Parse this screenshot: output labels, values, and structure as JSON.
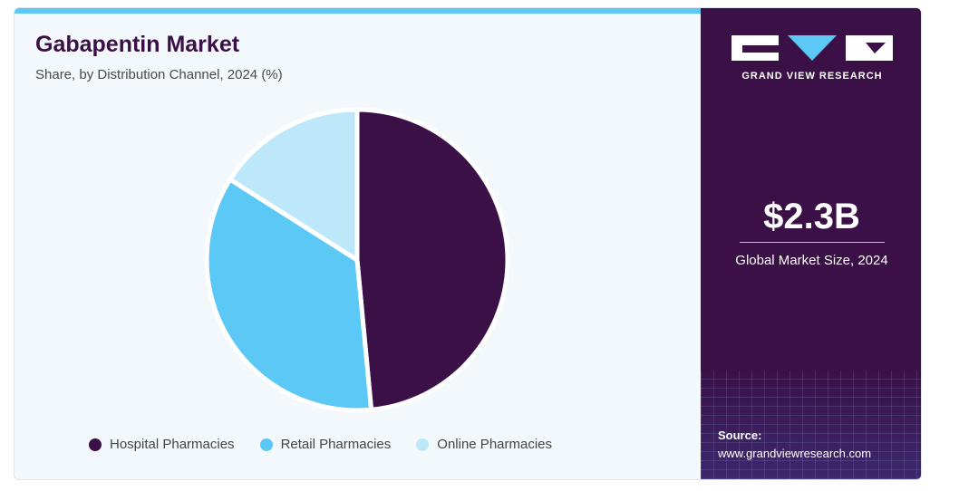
{
  "chart_data": {
    "type": "pie",
    "title": "Gabapentin Market",
    "subtitle": "Share, by Distribution Channel, 2024 (%)",
    "categories": [
      "Hospital Pharmacies",
      "Retail Pharmacies",
      "Online Pharmacies"
    ],
    "values": [
      48.5,
      35.5,
      16.0
    ],
    "colors": [
      "#3a1046",
      "#5bc8f5",
      "#bde8fa"
    ],
    "legend": "bottom"
  },
  "sidebar": {
    "logo_text": "GRAND VIEW RESEARCH",
    "market_value": "$2.3B",
    "market_caption": "Global Market Size, 2024",
    "source_label": "Source:",
    "source_url": "www.grandviewresearch.com"
  }
}
